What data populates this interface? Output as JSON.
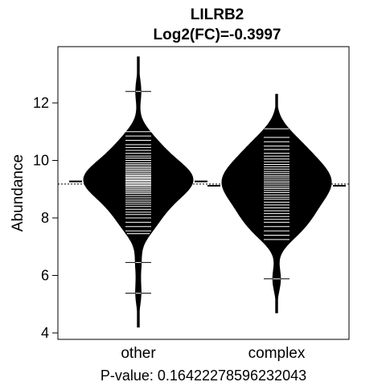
{
  "chart_data": {
    "type": "beanplot",
    "title": "LILRB2",
    "subtitle": "Log2(FC)=-0.3997",
    "xlabel": "",
    "ylabel": "Abundance",
    "ylim": [
      3.9,
      14.3
    ],
    "yticks": [
      4,
      6,
      8,
      10,
      12
    ],
    "ytick_labels": [
      "4",
      "6",
      "8",
      "10",
      "12"
    ],
    "categories": [
      "other",
      "complex"
    ],
    "overall_mean": 9.18,
    "footer": "P-value: 0.16422278596232043",
    "grid": false,
    "series": [
      {
        "category": "other",
        "mean": 9.27,
        "range": [
          4.2,
          13.6
        ],
        "mode": 9.4,
        "observations": [
          5.38,
          6.45,
          7.45,
          7.55,
          7.7,
          7.85,
          8.0,
          8.12,
          8.2,
          8.3,
          8.4,
          8.48,
          8.55,
          8.62,
          8.7,
          8.78,
          8.85,
          8.9,
          8.95,
          9.0,
          9.05,
          9.1,
          9.14,
          9.18,
          9.22,
          9.26,
          9.3,
          9.34,
          9.38,
          9.42,
          9.46,
          9.5,
          9.55,
          9.6,
          9.65,
          9.7,
          9.75,
          9.8,
          9.86,
          9.92,
          10.0,
          10.08,
          10.15,
          10.25,
          10.35,
          10.45,
          10.55,
          10.7,
          10.85,
          11.0,
          12.4
        ]
      },
      {
        "category": "complex",
        "mean": 9.12,
        "range": [
          4.7,
          12.3
        ],
        "mode": 9.5,
        "observations": [
          5.88,
          7.25,
          7.4,
          7.55,
          7.7,
          7.85,
          7.95,
          8.05,
          8.15,
          8.25,
          8.35,
          8.45,
          8.55,
          8.65,
          8.72,
          8.8,
          8.88,
          8.95,
          9.02,
          9.08,
          9.15,
          9.22,
          9.28,
          9.35,
          9.42,
          9.48,
          9.55,
          9.62,
          9.7,
          9.78,
          9.86,
          9.95,
          10.05,
          10.15,
          10.25,
          10.38,
          10.5,
          10.65,
          10.8,
          11.1
        ]
      }
    ]
  }
}
